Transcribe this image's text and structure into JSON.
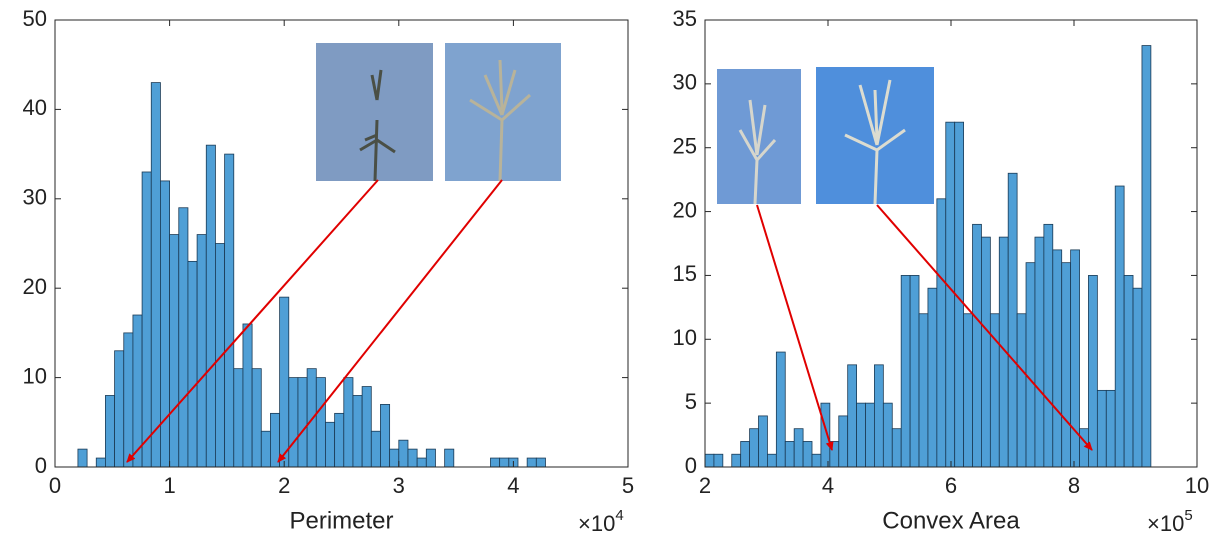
{
  "chart_data": [
    {
      "type": "histogram",
      "xlabel": "Perimeter",
      "x_multiplier": {
        "base": "×10",
        "exponent": "4"
      },
      "bins": [
        0.2,
        0.28,
        0.36,
        0.44,
        0.52,
        0.6,
        0.68,
        0.76,
        0.84,
        0.92,
        1.0,
        1.08,
        1.16,
        1.24,
        1.32,
        1.4,
        1.48,
        1.56,
        1.64,
        1.72,
        1.8,
        1.88,
        1.96,
        2.04,
        2.12,
        2.2,
        2.28,
        2.36,
        2.44,
        2.52,
        2.6,
        2.68,
        2.76,
        2.84,
        2.92,
        3.0,
        3.08,
        3.16,
        3.24,
        3.32,
        3.4,
        3.48,
        3.56,
        3.64,
        3.72,
        3.8,
        3.88,
        3.96,
        4.04,
        4.12,
        4.2,
        4.28
      ],
      "values": [
        2,
        0,
        1,
        8,
        13,
        15,
        17,
        33,
        43,
        32,
        26,
        29,
        23,
        26,
        36,
        25,
        35,
        11,
        16,
        11,
        4,
        6,
        19,
        10,
        10,
        11,
        10,
        5,
        6,
        10,
        8,
        9,
        4,
        7,
        2,
        3,
        2,
        1,
        2,
        0,
        2,
        0,
        0,
        0,
        0,
        1,
        1,
        1,
        0,
        1,
        1
      ],
      "color": "#4f9fd6",
      "xlim": [
        0,
        5
      ],
      "xticks": [
        0,
        1,
        2,
        3,
        4,
        5
      ],
      "ylim": [
        0,
        50
      ],
      "yticks": [
        0,
        10,
        20,
        30,
        40,
        50
      ]
    },
    {
      "type": "histogram",
      "xlabel": "Convex Area",
      "x_multiplier": {
        "base": "×10",
        "exponent": "5"
      },
      "bins": [
        2.0,
        2.145,
        2.29,
        2.435,
        2.58,
        2.725,
        2.87,
        3.015,
        3.16,
        3.305,
        3.45,
        3.595,
        3.74,
        3.885,
        4.03,
        4.175,
        4.32,
        4.465,
        4.61,
        4.755,
        4.9,
        5.045,
        5.19,
        5.335,
        5.48,
        5.625,
        5.77,
        5.915,
        6.06,
        6.205,
        6.35,
        6.495,
        6.64,
        6.785,
        6.93,
        7.075,
        7.22,
        7.365,
        7.51,
        7.655,
        7.8,
        7.945,
        8.09,
        8.235,
        8.38,
        8.525,
        8.67,
        8.815,
        8.96,
        9.105,
        9.25
      ],
      "values": [
        1,
        1,
        0,
        1,
        2,
        3,
        4,
        1,
        9,
        2,
        3,
        2,
        1,
        5,
        2,
        4,
        8,
        5,
        5,
        8,
        5,
        3,
        15,
        15,
        12,
        14,
        21,
        27,
        27,
        12,
        19,
        18,
        12,
        18,
        23,
        12,
        16,
        18,
        19,
        17,
        16,
        17,
        3,
        15,
        6,
        6,
        22,
        15,
        14,
        33
      ],
      "color": "#4f9fd6",
      "xlim": [
        2,
        10
      ],
      "xticks": [
        2,
        4,
        6,
        8,
        10
      ],
      "ylim": [
        0,
        35
      ],
      "yticks": [
        0,
        5,
        10,
        15,
        20,
        25,
        30,
        35
      ]
    }
  ]
}
